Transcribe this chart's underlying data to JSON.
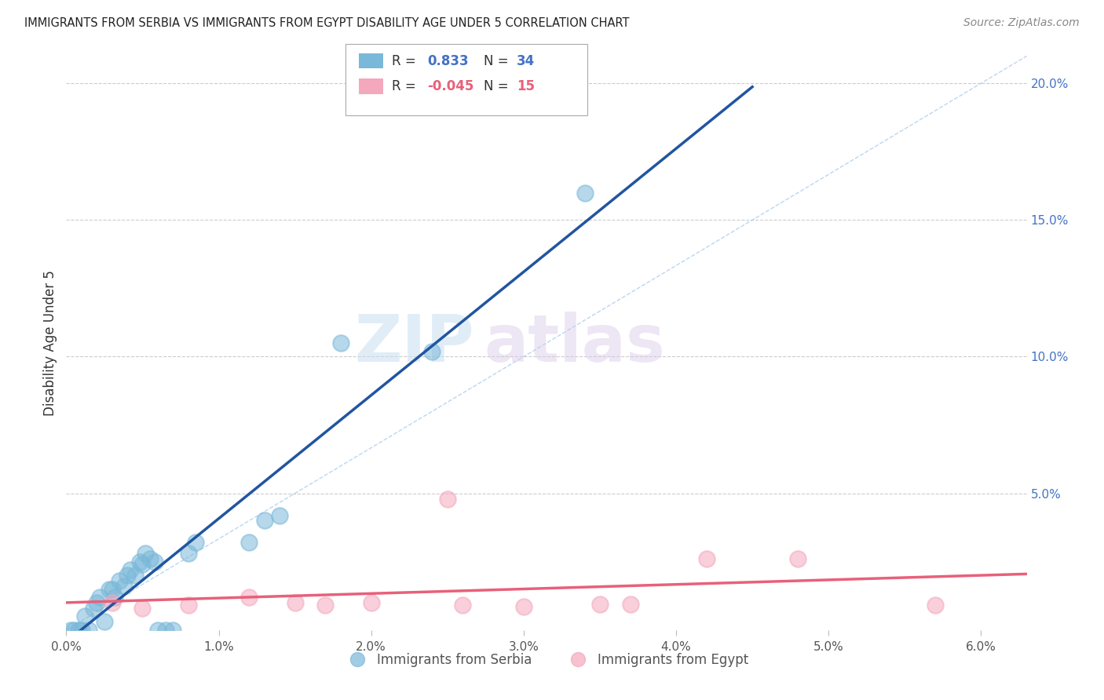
{
  "title": "IMMIGRANTS FROM SERBIA VS IMMIGRANTS FROM EGYPT DISABILITY AGE UNDER 5 CORRELATION CHART",
  "source": "Source: ZipAtlas.com",
  "ylabel": "Disability Age Under 5",
  "watermark_zip": "ZIP",
  "watermark_atlas": "atlas",
  "serbia_R": 0.833,
  "serbia_N": 34,
  "egypt_R": -0.045,
  "egypt_N": 15,
  "serbia_color": "#7ab8d9",
  "egypt_color": "#f4a8bc",
  "serbia_line_color": "#2155a0",
  "egypt_line_color": "#e8607a",
  "serbia_scatter": [
    [
      0.001,
      0.0
    ],
    [
      0.0012,
      0.005
    ],
    [
      0.0015,
      0.0
    ],
    [
      0.0018,
      0.008
    ],
    [
      0.002,
      0.01
    ],
    [
      0.0022,
      0.012
    ],
    [
      0.0025,
      0.003
    ],
    [
      0.0028,
      0.015
    ],
    [
      0.003,
      0.015
    ],
    [
      0.0032,
      0.012
    ],
    [
      0.0035,
      0.018
    ],
    [
      0.0038,
      0.016
    ],
    [
      0.004,
      0.02
    ],
    [
      0.0042,
      0.022
    ],
    [
      0.0045,
      0.02
    ],
    [
      0.0048,
      0.025
    ],
    [
      0.005,
      0.024
    ],
    [
      0.0052,
      0.028
    ],
    [
      0.0055,
      0.026
    ],
    [
      0.0058,
      0.025
    ],
    [
      0.006,
      0.0
    ],
    [
      0.0065,
      0.0
    ],
    [
      0.007,
      0.0
    ],
    [
      0.0008,
      0.0
    ],
    [
      0.0005,
      0.0
    ],
    [
      0.0003,
      0.0
    ],
    [
      0.008,
      0.028
    ],
    [
      0.0085,
      0.032
    ],
    [
      0.012,
      0.032
    ],
    [
      0.013,
      0.04
    ],
    [
      0.014,
      0.042
    ],
    [
      0.018,
      0.105
    ],
    [
      0.024,
      0.102
    ],
    [
      0.034,
      0.16
    ]
  ],
  "egypt_scatter": [
    [
      0.003,
      0.01
    ],
    [
      0.005,
      0.008
    ],
    [
      0.008,
      0.009
    ],
    [
      0.012,
      0.012
    ],
    [
      0.015,
      0.01
    ],
    [
      0.017,
      0.009
    ],
    [
      0.02,
      0.01
    ],
    [
      0.025,
      0.048
    ],
    [
      0.026,
      0.009
    ],
    [
      0.03,
      0.0085
    ],
    [
      0.035,
      0.0095
    ],
    [
      0.037,
      0.0095
    ],
    [
      0.042,
      0.026
    ],
    [
      0.048,
      0.026
    ],
    [
      0.057,
      0.009
    ]
  ],
  "xlim": [
    0.0,
    0.063
  ],
  "ylim": [
    0.0,
    0.21
  ],
  "xticks": [
    0.0,
    0.01,
    0.02,
    0.03,
    0.04,
    0.05,
    0.06
  ],
  "yticks_right": [
    0.05,
    0.1,
    0.15,
    0.2
  ],
  "ytick_labels_right": [
    "5.0%",
    "10.0%",
    "15.0%",
    "20.0%"
  ],
  "xtick_labels": [
    "0.0%",
    "1.0%",
    "2.0%",
    "3.0%",
    "4.0%",
    "5.0%",
    "6.0%"
  ],
  "legend_labels": [
    "Immigrants from Serbia",
    "Immigrants from Egypt"
  ],
  "background_color": "#ffffff",
  "grid_color": "#cccccc",
  "title_color": "#222222",
  "right_axis_color": "#4472c4"
}
